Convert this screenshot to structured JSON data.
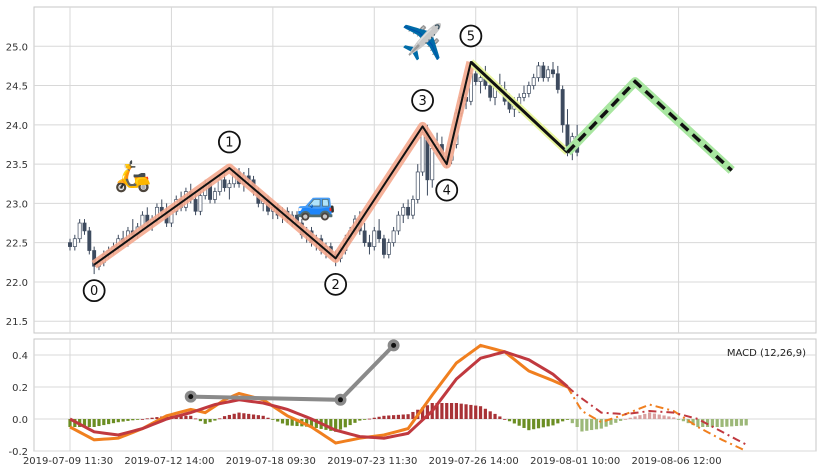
{
  "colors": {
    "up": "#ffffff",
    "down": "#3d4a5e",
    "wick": "#3d4a5e",
    "grid": "#d8d8d8",
    "frame": "#c7c7c7",
    "zigzag": "#111111",
    "zigzag_halo": "#f4a98e",
    "projection_halo": "#a8e6a0",
    "macd": "#f07f1f",
    "signal": "#c0393f",
    "hist_pos": "#a83236",
    "hist_neg": "#6b8e23",
    "hist_future": "#9cb878",
    "macd_link": "#8a8a8a"
  },
  "chart_data": [
    {
      "type": "candlestick",
      "title": "",
      "ylim": [
        21.35,
        25.5
      ],
      "yticks": [
        "21.5",
        "22.0",
        "22.5",
        "23.0",
        "23.5",
        "24.0",
        "24.5",
        "25.0"
      ],
      "n_bars": 148,
      "ohlc": [
        [
          22.5,
          22.55,
          22.4,
          22.45
        ],
        [
          22.45,
          22.6,
          22.4,
          22.55
        ],
        [
          22.55,
          22.8,
          22.5,
          22.75
        ],
        [
          22.75,
          22.8,
          22.6,
          22.65
        ],
        [
          22.65,
          22.7,
          22.35,
          22.4
        ],
        [
          22.4,
          22.45,
          22.1,
          22.2
        ],
        [
          22.2,
          22.3,
          22.15,
          22.25
        ],
        [
          22.25,
          22.4,
          22.2,
          22.35
        ],
        [
          22.35,
          22.45,
          22.3,
          22.4
        ],
        [
          22.4,
          22.5,
          22.35,
          22.45
        ],
        [
          22.45,
          22.6,
          22.4,
          22.55
        ],
        [
          22.55,
          22.65,
          22.45,
          22.5
        ],
        [
          22.5,
          22.7,
          22.45,
          22.65
        ],
        [
          22.65,
          22.8,
          22.55,
          22.6
        ],
        [
          22.6,
          22.75,
          22.55,
          22.7
        ],
        [
          22.7,
          22.9,
          22.65,
          22.85
        ],
        [
          22.85,
          22.95,
          22.7,
          22.75
        ],
        [
          22.75,
          22.85,
          22.65,
          22.8
        ],
        [
          22.8,
          23.0,
          22.75,
          22.95
        ],
        [
          22.95,
          23.05,
          22.85,
          22.9
        ],
        [
          22.9,
          23.0,
          22.7,
          22.75
        ],
        [
          22.75,
          22.95,
          22.7,
          22.9
        ],
        [
          22.9,
          23.1,
          22.85,
          23.05
        ],
        [
          23.05,
          23.15,
          22.9,
          22.95
        ],
        [
          22.95,
          23.2,
          22.9,
          23.15
        ],
        [
          23.15,
          23.25,
          23.0,
          23.05
        ],
        [
          23.05,
          23.15,
          22.85,
          22.9
        ],
        [
          22.9,
          23.2,
          22.85,
          23.1
        ],
        [
          23.1,
          23.3,
          23.05,
          23.25
        ],
        [
          23.25,
          23.3,
          23.0,
          23.05
        ],
        [
          23.05,
          23.2,
          23.0,
          23.15
        ],
        [
          23.15,
          23.35,
          23.1,
          23.3
        ],
        [
          23.3,
          23.4,
          23.15,
          23.2
        ],
        [
          23.2,
          23.3,
          23.05,
          23.25
        ],
        [
          23.25,
          23.45,
          23.2,
          23.4
        ],
        [
          23.4,
          23.45,
          23.2,
          23.25
        ],
        [
          23.25,
          23.4,
          23.15,
          23.35
        ],
        [
          23.35,
          23.45,
          23.25,
          23.3
        ],
        [
          23.3,
          23.35,
          23.1,
          23.15
        ],
        [
          23.15,
          23.2,
          22.95,
          23.0
        ],
        [
          23.0,
          23.1,
          22.9,
          23.05
        ],
        [
          23.05,
          23.1,
          22.85,
          22.9
        ],
        [
          22.9,
          23.0,
          22.8,
          22.95
        ],
        [
          22.95,
          23.0,
          22.8,
          22.85
        ],
        [
          22.85,
          22.95,
          22.75,
          22.9
        ],
        [
          22.9,
          22.95,
          22.75,
          22.8
        ],
        [
          22.8,
          22.9,
          22.7,
          22.85
        ],
        [
          22.85,
          22.9,
          22.7,
          22.75
        ],
        [
          22.75,
          22.8,
          22.55,
          22.6
        ],
        [
          22.6,
          22.7,
          22.5,
          22.65
        ],
        [
          22.65,
          22.7,
          22.45,
          22.5
        ],
        [
          22.5,
          22.6,
          22.4,
          22.55
        ],
        [
          22.55,
          22.6,
          22.35,
          22.4
        ],
        [
          22.4,
          22.5,
          22.3,
          22.45
        ],
        [
          22.45,
          22.5,
          22.3,
          22.35
        ],
        [
          22.35,
          22.4,
          22.2,
          22.3
        ],
        [
          22.3,
          22.45,
          22.25,
          22.4
        ],
        [
          22.4,
          22.6,
          22.35,
          22.55
        ],
        [
          22.55,
          22.7,
          22.5,
          22.65
        ],
        [
          22.65,
          22.85,
          22.6,
          22.8
        ],
        [
          22.8,
          22.9,
          22.6,
          22.65
        ],
        [
          22.65,
          22.75,
          22.45,
          22.5
        ],
        [
          22.5,
          22.6,
          22.35,
          22.45
        ],
        [
          22.45,
          22.7,
          22.4,
          22.65
        ],
        [
          22.65,
          22.8,
          22.5,
          22.55
        ],
        [
          22.55,
          22.6,
          22.3,
          22.35
        ],
        [
          22.35,
          22.55,
          22.3,
          22.5
        ],
        [
          22.5,
          22.7,
          22.45,
          22.65
        ],
        [
          22.65,
          22.9,
          22.6,
          22.85
        ],
        [
          22.85,
          23.0,
          22.75,
          22.95
        ],
        [
          22.95,
          23.05,
          22.8,
          22.85
        ],
        [
          22.85,
          23.1,
          22.8,
          23.05
        ],
        [
          23.05,
          23.5,
          23.0,
          23.4
        ],
        [
          23.4,
          23.95,
          23.35,
          23.9
        ],
        [
          23.9,
          24.0,
          23.1,
          23.3
        ],
        [
          23.3,
          23.75,
          23.2,
          23.7
        ],
        [
          23.7,
          23.9,
          23.6,
          23.75
        ],
        [
          23.75,
          23.85,
          23.55,
          23.6
        ],
        [
          23.6,
          23.7,
          23.45,
          23.55
        ],
        [
          23.55,
          23.8,
          23.5,
          23.75
        ],
        [
          23.75,
          24.2,
          23.7,
          24.15
        ],
        [
          24.15,
          24.4,
          24.1,
          24.35
        ],
        [
          24.35,
          24.5,
          24.2,
          24.3
        ],
        [
          24.3,
          24.7,
          24.25,
          24.65
        ],
        [
          24.65,
          24.8,
          24.5,
          24.55
        ],
        [
          24.55,
          24.7,
          24.4,
          24.6
        ],
        [
          24.6,
          24.75,
          24.45,
          24.5
        ],
        [
          24.5,
          24.6,
          24.3,
          24.35
        ],
        [
          24.35,
          24.55,
          24.25,
          24.5
        ],
        [
          24.5,
          24.65,
          24.4,
          24.45
        ],
        [
          24.45,
          24.55,
          24.25,
          24.3
        ],
        [
          24.3,
          24.4,
          24.15,
          24.2
        ],
        [
          24.2,
          24.35,
          24.1,
          24.25
        ],
        [
          24.25,
          24.4,
          24.15,
          24.35
        ],
        [
          24.35,
          24.5,
          24.3,
          24.4
        ],
        [
          24.4,
          24.55,
          24.35,
          24.5
        ],
        [
          24.5,
          24.65,
          24.45,
          24.6
        ],
        [
          24.6,
          24.8,
          24.55,
          24.75
        ],
        [
          24.75,
          24.8,
          24.55,
          24.6
        ],
        [
          24.6,
          24.75,
          24.55,
          24.7
        ],
        [
          24.7,
          24.8,
          24.6,
          24.65
        ],
        [
          24.65,
          24.75,
          24.4,
          24.45
        ],
        [
          24.45,
          24.5,
          23.9,
          24.0
        ],
        [
          24.0,
          24.2,
          23.6,
          23.7
        ],
        [
          23.7,
          23.9,
          23.55,
          23.85
        ],
        [
          23.85,
          24.0,
          23.6,
          23.65
        ]
      ],
      "zigzag": {
        "points": [
          [
            5,
            22.22
          ],
          [
            33,
            23.45
          ],
          [
            55,
            22.3
          ],
          [
            73,
            23.98
          ],
          [
            78,
            23.5
          ],
          [
            83,
            24.8
          ],
          [
            103,
            23.65
          ]
        ],
        "labels": [
          "0",
          "1",
          "2",
          "3",
          "4",
          "5"
        ]
      },
      "projection": {
        "points": [
          [
            103,
            23.65
          ],
          [
            117,
            24.55
          ],
          [
            137,
            23.42
          ]
        ]
      },
      "x_tick_positions": [
        0,
        21,
        42,
        63,
        84,
        105,
        126
      ],
      "x_tick_labels": [
        "2019-07-09 11:30",
        "2019-07-12 14:00",
        "2019-07-18 09:30",
        "2019-07-23 11:30",
        "2019-07-26 14:00",
        "2019-08-01 10:00",
        "2019-08-06 12:00"
      ],
      "annotations": [
        {
          "icon": "scooter-icon",
          "glyph": "🛵"
        },
        {
          "icon": "car-icon",
          "glyph": "🚙"
        },
        {
          "icon": "airplane-icon",
          "glyph": "✈️"
        }
      ]
    },
    {
      "type": "line+bar",
      "label": "MACD (12,26,9)",
      "ylim": [
        -0.2,
        0.5
      ],
      "yticks": [
        "-0.2",
        "0.0",
        "0.2",
        "0.4"
      ],
      "macd_knots": [
        [
          0,
          -0.05
        ],
        [
          5,
          -0.13
        ],
        [
          10,
          -0.12
        ],
        [
          15,
          -0.06
        ],
        [
          20,
          0.02
        ],
        [
          25,
          0.06
        ],
        [
          28,
          0.04
        ],
        [
          32,
          0.12
        ],
        [
          35,
          0.16
        ],
        [
          40,
          0.12
        ],
        [
          45,
          0.02
        ],
        [
          50,
          -0.05
        ],
        [
          55,
          -0.15
        ],
        [
          60,
          -0.12
        ],
        [
          65,
          -0.1
        ],
        [
          70,
          -0.06
        ],
        [
          75,
          0.15
        ],
        [
          80,
          0.35
        ],
        [
          85,
          0.46
        ],
        [
          90,
          0.42
        ],
        [
          95,
          0.3
        ],
        [
          100,
          0.24
        ],
        [
          103,
          0.2
        ],
        [
          106,
          0.05
        ],
        [
          110,
          -0.02
        ],
        [
          115,
          0.03
        ],
        [
          120,
          0.09
        ],
        [
          125,
          0.05
        ],
        [
          130,
          -0.05
        ],
        [
          135,
          -0.13
        ],
        [
          140,
          -0.2
        ]
      ],
      "signal_knots": [
        [
          0,
          0.0
        ],
        [
          5,
          -0.08
        ],
        [
          10,
          -0.1
        ],
        [
          15,
          -0.06
        ],
        [
          20,
          0.0
        ],
        [
          25,
          0.04
        ],
        [
          30,
          0.09
        ],
        [
          35,
          0.12
        ],
        [
          40,
          0.1
        ],
        [
          45,
          0.06
        ],
        [
          50,
          0.0
        ],
        [
          55,
          -0.07
        ],
        [
          60,
          -0.11
        ],
        [
          65,
          -0.12
        ],
        [
          70,
          -0.09
        ],
        [
          75,
          0.05
        ],
        [
          80,
          0.25
        ],
        [
          85,
          0.38
        ],
        [
          90,
          0.42
        ],
        [
          95,
          0.37
        ],
        [
          100,
          0.28
        ],
        [
          105,
          0.15
        ],
        [
          110,
          0.04
        ],
        [
          115,
          0.03
        ],
        [
          120,
          0.05
        ],
        [
          125,
          0.04
        ],
        [
          130,
          0.0
        ],
        [
          135,
          -0.08
        ],
        [
          140,
          -0.16
        ]
      ],
      "macd_link_points": [
        [
          25,
          0.14
        ],
        [
          56,
          0.12
        ],
        [
          67,
          0.46
        ]
      ]
    }
  ]
}
